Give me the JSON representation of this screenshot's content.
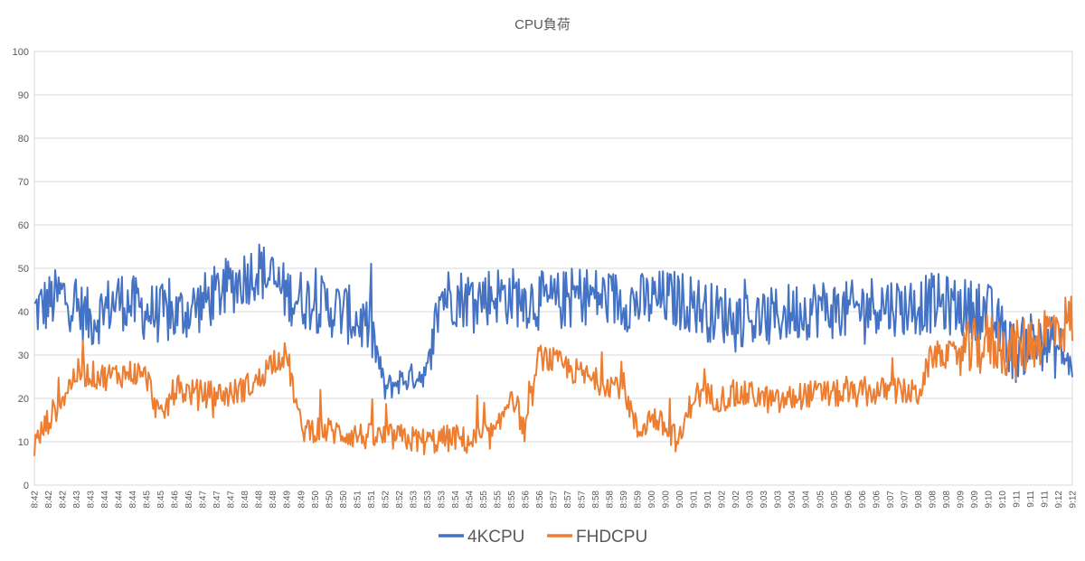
{
  "chart_data": {
    "type": "line",
    "title": "CPU負荷",
    "xlabel": "",
    "ylabel": "",
    "ylim": [
      0,
      100
    ],
    "yticks": [
      "0",
      "10",
      "20",
      "30",
      "40",
      "50",
      "60",
      "70",
      "80",
      "90",
      "100"
    ],
    "xtick_labels": [
      "8:42",
      "8:42",
      "8:42",
      "8:43",
      "8:43",
      "8:44",
      "8:44",
      "8:44",
      "8:45",
      "8:45",
      "8:46",
      "8:46",
      "8:47",
      "8:47",
      "8:47",
      "8:48",
      "8:48",
      "8:48",
      "8:49",
      "8:49",
      "8:50",
      "8:50",
      "8:50",
      "8:51",
      "8:51",
      "8:52",
      "8:52",
      "8:53",
      "8:53",
      "8:53",
      "8:54",
      "8:54",
      "8:55",
      "8:55",
      "8:55",
      "8:56",
      "8:56",
      "8:57",
      "8:57",
      "8:57",
      "8:58",
      "8:58",
      "8:59",
      "8:59",
      "9:00",
      "9:00",
      "9:00",
      "9:01",
      "9:01",
      "9:02",
      "9:02",
      "9:03",
      "9:03",
      "9:03",
      "9:04",
      "9:04",
      "9:05",
      "9:05",
      "9:06",
      "9:06",
      "9:06",
      "9:07",
      "9:07",
      "9:08",
      "9:08",
      "9:08",
      "9:09",
      "9:09",
      "9:10",
      "9:10",
      "9:11",
      "9:11",
      "9:11",
      "9:12",
      "9:12"
    ],
    "grid": true,
    "legend_position": "bottom",
    "series": [
      {
        "name": "4KCPU",
        "color": "#4472C4",
        "segments": [
          [
            0,
            40
          ],
          [
            2,
            44
          ],
          [
            4,
            38
          ],
          [
            6,
            43
          ],
          [
            8,
            40
          ],
          [
            10,
            39
          ],
          [
            12,
            42
          ],
          [
            14,
            46
          ],
          [
            16,
            50
          ],
          [
            18,
            44
          ],
          [
            20,
            42
          ],
          [
            22,
            40
          ],
          [
            24,
            36
          ],
          [
            25,
            22
          ],
          [
            26,
            24
          ],
          [
            28,
            26
          ],
          [
            29,
            44
          ],
          [
            31,
            43
          ],
          [
            33,
            44
          ],
          [
            35,
            43
          ],
          [
            37,
            42
          ],
          [
            39,
            44
          ],
          [
            41,
            43
          ],
          [
            43,
            42
          ],
          [
            45,
            43
          ],
          [
            47,
            42
          ],
          [
            48,
            40
          ],
          [
            50,
            39
          ],
          [
            52,
            38
          ],
          [
            54,
            40
          ],
          [
            56,
            41
          ],
          [
            58,
            40
          ],
          [
            60,
            42
          ],
          [
            62,
            41
          ],
          [
            64,
            42
          ],
          [
            66,
            41
          ],
          [
            68,
            40
          ],
          [
            69,
            35
          ],
          [
            70,
            30
          ],
          [
            71,
            34
          ],
          [
            72,
            33
          ],
          [
            73,
            31
          ],
          [
            74,
            27
          ]
        ]
      },
      {
        "name": "FHDCPU",
        "color": "#ED7D31",
        "segments": [
          [
            0,
            9
          ],
          [
            1,
            15
          ],
          [
            2,
            20
          ],
          [
            3,
            26
          ],
          [
            5,
            25
          ],
          [
            7,
            26
          ],
          [
            8,
            25
          ],
          [
            9,
            15
          ],
          [
            10,
            22
          ],
          [
            12,
            21
          ],
          [
            14,
            21
          ],
          [
            16,
            24
          ],
          [
            17,
            29
          ],
          [
            18,
            30
          ],
          [
            19,
            13
          ],
          [
            20,
            13
          ],
          [
            22,
            12
          ],
          [
            24,
            11
          ],
          [
            26,
            11
          ],
          [
            28,
            10
          ],
          [
            30,
            11
          ],
          [
            31,
            10
          ],
          [
            33,
            12
          ],
          [
            34,
            22
          ],
          [
            35,
            12
          ],
          [
            36,
            30
          ],
          [
            38,
            27
          ],
          [
            40,
            24
          ],
          [
            42,
            23
          ],
          [
            43,
            12
          ],
          [
            44,
            16
          ],
          [
            46,
            10
          ],
          [
            47,
            21
          ],
          [
            49,
            20
          ],
          [
            51,
            21
          ],
          [
            53,
            19
          ],
          [
            55,
            21
          ],
          [
            57,
            21
          ],
          [
            59,
            21
          ],
          [
            61,
            22
          ],
          [
            63,
            21
          ],
          [
            64,
            30
          ],
          [
            66,
            30
          ],
          [
            68,
            33
          ],
          [
            70,
            31
          ],
          [
            72,
            35
          ],
          [
            74,
            38
          ]
        ]
      }
    ]
  }
}
